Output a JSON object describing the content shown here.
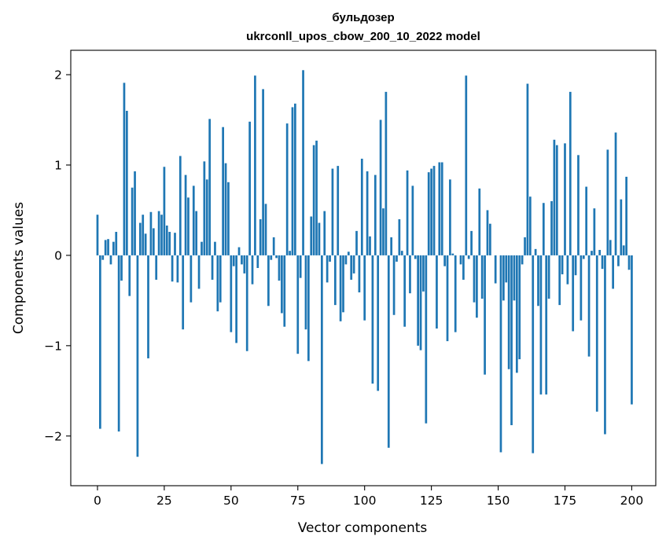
{
  "chart_data": {
    "type": "bar",
    "title_line1": "бульдозер",
    "title_line2": "ukrconll_upos_cbow_200_10_2022 model",
    "xlabel": "Vector components",
    "ylabel": "Components values",
    "xlim": [
      -10,
      209
    ],
    "ylim": [
      -2.55,
      2.27
    ],
    "xticks": [
      0,
      25,
      50,
      75,
      100,
      125,
      150,
      175,
      200
    ],
    "yticks": [
      -2,
      -1,
      0,
      1,
      2
    ],
    "ytick_labels": [
      "−2",
      "−1",
      "0",
      "1",
      "2"
    ],
    "grid": false,
    "color": "#1f77b4",
    "values": [
      0.45,
      -1.92,
      -0.05,
      0.17,
      0.18,
      -0.1,
      0.15,
      0.26,
      -1.95,
      -0.28,
      1.91,
      1.6,
      -0.45,
      0.75,
      0.93,
      -2.23,
      0.36,
      0.45,
      0.24,
      -1.14,
      0.48,
      0.3,
      -0.27,
      0.49,
      0.45,
      0.98,
      0.33,
      0.26,
      -0.29,
      0.25,
      -0.3,
      1.1,
      -0.82,
      0.89,
      0.64,
      -0.52,
      0.77,
      0.49,
      -0.37,
      0.15,
      1.04,
      0.84,
      1.51,
      -0.27,
      0.15,
      -0.62,
      -0.52,
      1.42,
      1.02,
      0.81,
      -0.85,
      -0.12,
      -0.97,
      0.09,
      -0.1,
      -0.2,
      -1.06,
      1.48,
      -0.32,
      1.99,
      -0.14,
      0.4,
      1.84,
      0.57,
      -0.56,
      -0.05,
      0.2,
      -0.03,
      -0.28,
      -0.64,
      -0.79,
      1.46,
      0.05,
      1.64,
      1.68,
      -1.09,
      -0.25,
      2.05,
      -0.82,
      -1.17,
      0.43,
      1.22,
      1.27,
      0.36,
      -2.31,
      0.49,
      -0.3,
      -0.07,
      0.96,
      -0.55,
      0.99,
      -0.73,
      -0.63,
      -0.1,
      0.04,
      -0.27,
      -0.2,
      0.27,
      -0.41,
      1.07,
      -0.72,
      0.93,
      0.21,
      -1.42,
      0.89,
      -1.5,
      1.5,
      0.52,
      1.81,
      -2.13,
      0.2,
      -0.66,
      -0.07,
      0.4,
      0.05,
      -0.79,
      0.94,
      -0.42,
      0.77,
      -0.04,
      -1.0,
      -1.05,
      -0.4,
      -1.86,
      0.92,
      0.96,
      0.99,
      -0.81,
      1.03,
      1.03,
      -0.12,
      -0.95,
      0.84,
      0.02,
      -0.85,
      0.0,
      -0.1,
      -0.27,
      1.99,
      -0.04,
      0.27,
      -0.52,
      -0.69,
      0.74,
      -0.48,
      -1.32,
      0.5,
      0.35,
      0.0,
      -0.31,
      0.0,
      -2.18,
      -0.5,
      -0.3,
      -1.26,
      -1.88,
      -0.5,
      -1.3,
      -1.15,
      -0.1,
      0.2,
      1.9,
      0.65,
      -2.19,
      0.07,
      -0.56,
      -1.54,
      0.58,
      -1.54,
      -0.48,
      0.6,
      1.28,
      1.22,
      -0.55,
      -0.21,
      1.24,
      -0.32,
      1.81,
      -0.84,
      -0.22,
      1.11,
      -0.72,
      -0.04,
      0.76,
      -1.12,
      0.05,
      0.52,
      -1.73,
      0.06,
      -0.15,
      -1.98,
      1.17,
      0.17,
      -0.37,
      1.36,
      -0.12,
      0.62,
      0.11,
      0.87,
      -0.16,
      -1.65
    ]
  }
}
